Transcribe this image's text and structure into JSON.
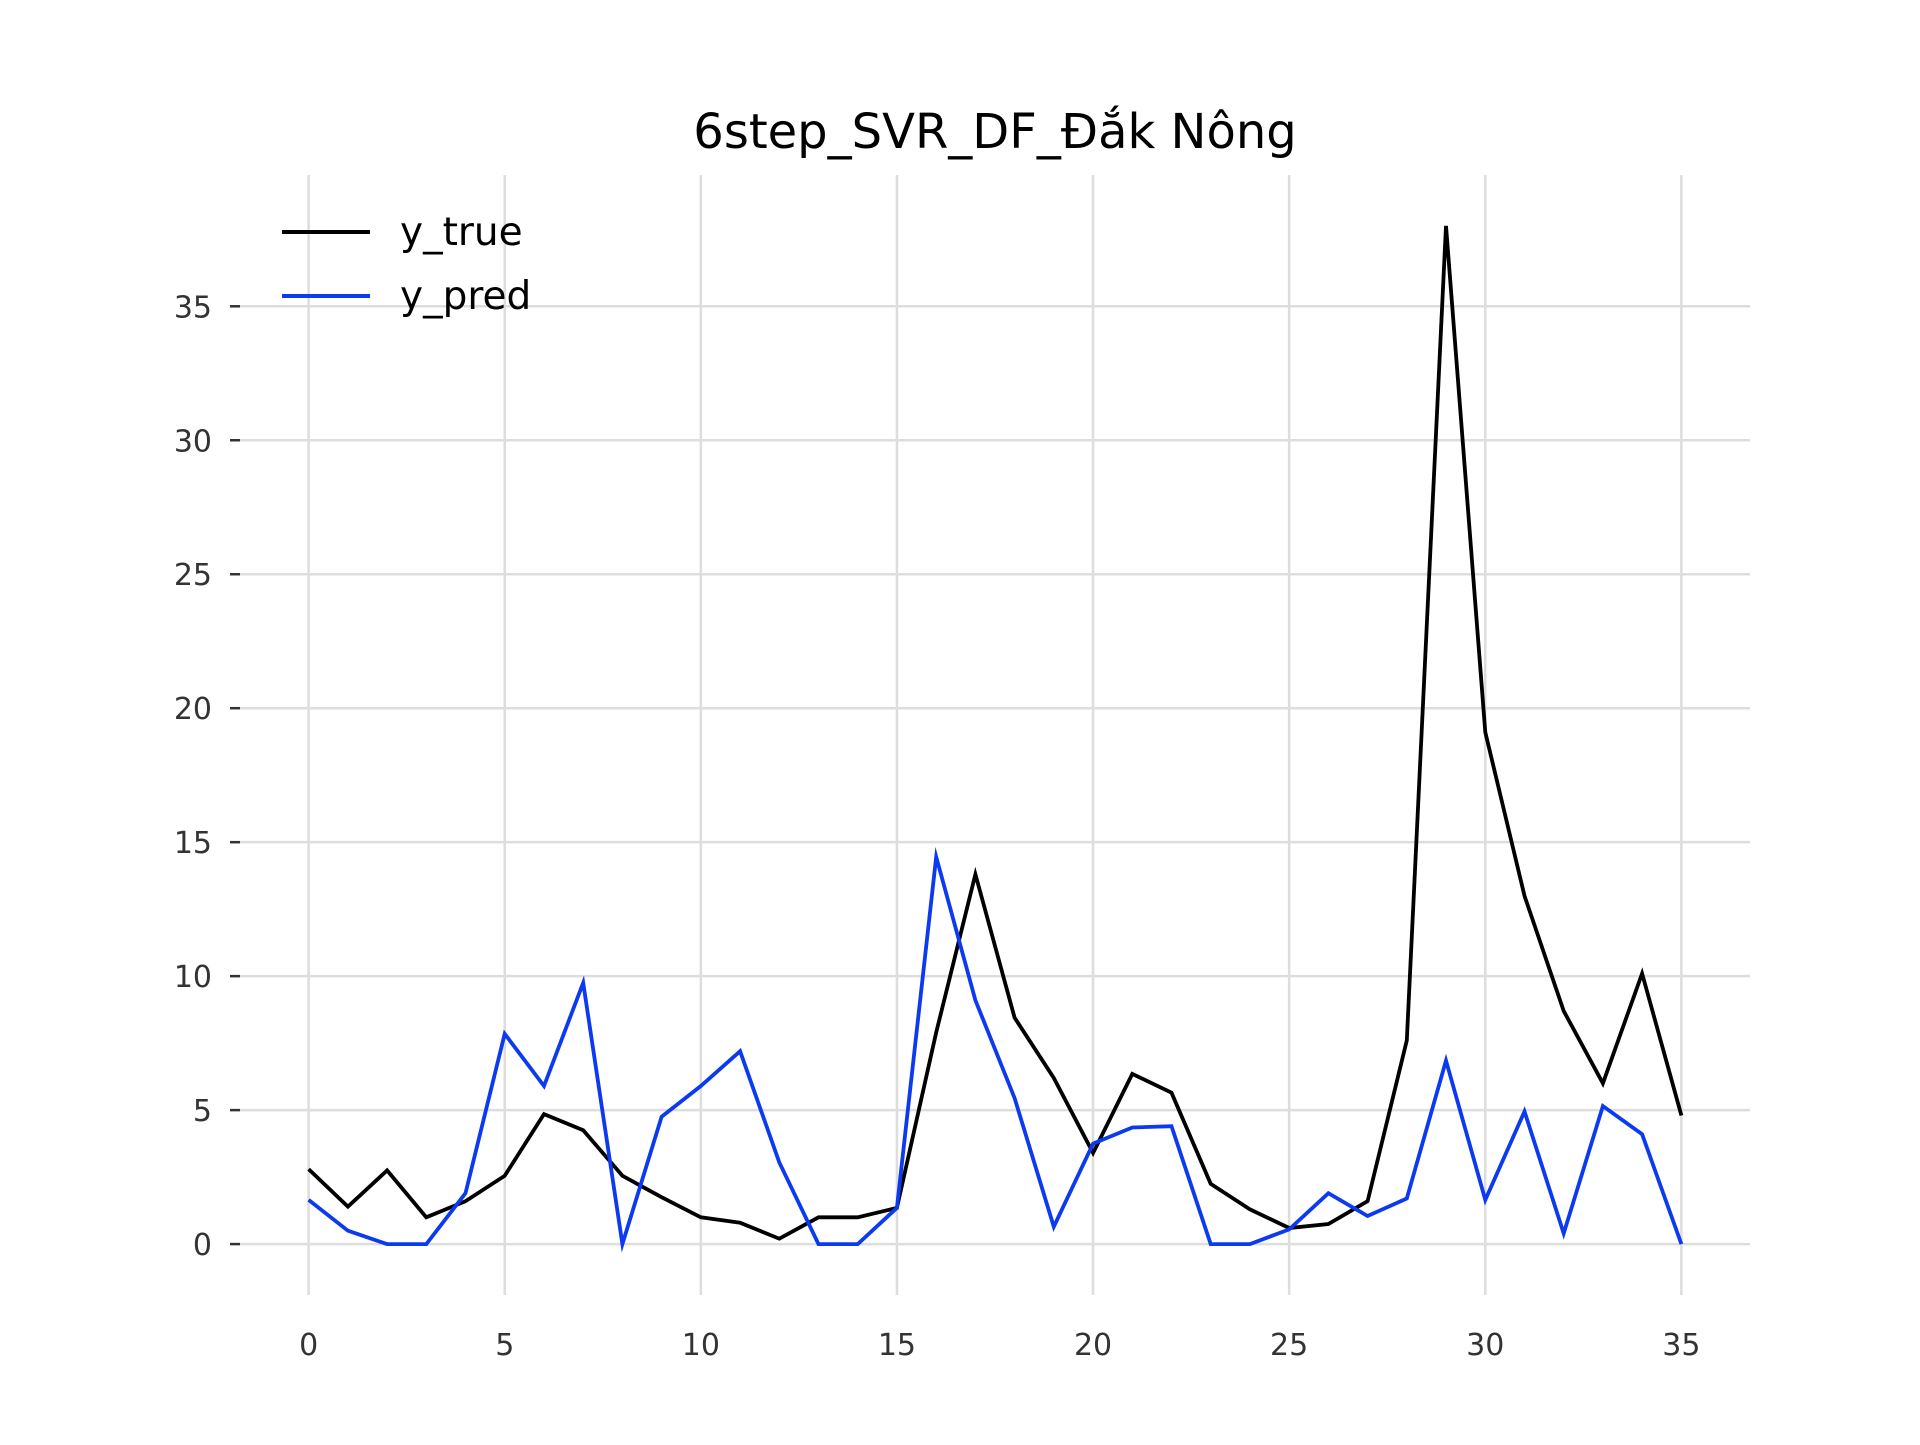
{
  "chart_data": {
    "type": "line",
    "title": "6step_SVR_DF_Đắk Nông",
    "xlabel": "",
    "ylabel": "",
    "xlim": [
      -1.75,
      36.75
    ],
    "ylim": [
      -1.9,
      39.9
    ],
    "xticks": [
      0,
      5,
      10,
      15,
      20,
      25,
      30,
      35
    ],
    "yticks": [
      0,
      5,
      10,
      15,
      20,
      25,
      30,
      35
    ],
    "xtick_labels": [
      "0",
      "5",
      "10",
      "15",
      "20",
      "25",
      "30",
      "35"
    ],
    "ytick_labels": [
      "0",
      "5",
      "10",
      "15",
      "20",
      "25",
      "30",
      "35"
    ],
    "grid": true,
    "legend_position": "top-left",
    "x": [
      0,
      1,
      2,
      3,
      4,
      5,
      6,
      7,
      8,
      9,
      10,
      11,
      12,
      13,
      14,
      15,
      16,
      17,
      18,
      19,
      20,
      21,
      22,
      23,
      24,
      25,
      26,
      27,
      28,
      29,
      30,
      31,
      32,
      33,
      34,
      35
    ],
    "series": [
      {
        "name": "y_true",
        "color": "#000000",
        "values": [
          2.8,
          1.4,
          2.75,
          1.0,
          1.6,
          2.55,
          4.85,
          4.25,
          2.55,
          1.75,
          1.0,
          0.8,
          0.2,
          1.0,
          1.0,
          1.35,
          7.9,
          13.8,
          8.45,
          6.2,
          3.4,
          6.35,
          5.65,
          2.25,
          1.3,
          0.6,
          0.75,
          1.6,
          7.6,
          38.0,
          19.1,
          13.0,
          8.7,
          6.0,
          10.1,
          4.8
        ]
      },
      {
        "name": "y_pred",
        "color": "#0b3af0",
        "values": [
          1.65,
          0.5,
          0.0,
          0.0,
          1.9,
          7.85,
          5.9,
          9.75,
          0.0,
          4.75,
          5.9,
          7.2,
          3.05,
          0.0,
          0.0,
          1.35,
          14.45,
          9.1,
          5.45,
          0.65,
          3.75,
          4.35,
          4.4,
          0.0,
          0.0,
          0.55,
          1.9,
          1.05,
          1.7,
          6.85,
          1.65,
          4.95,
          0.4,
          5.15,
          4.1,
          0.0
        ]
      }
    ]
  }
}
